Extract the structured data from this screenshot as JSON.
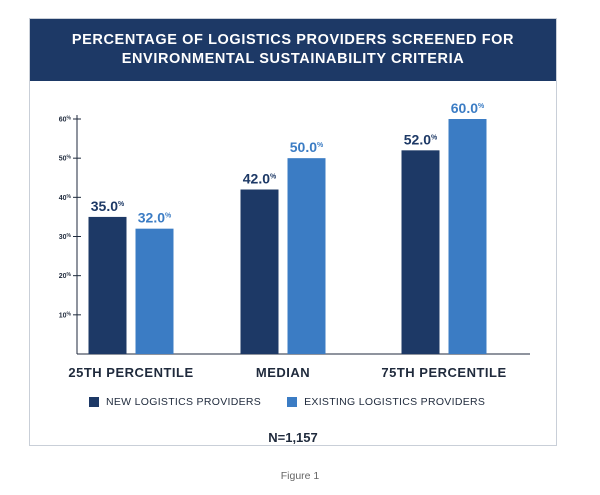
{
  "title": {
    "line1": "PERCENTAGE OF LOGISTICS PROVIDERS SCREENED FOR",
    "line2": "ENVIRONMENTAL SUSTAINABILITY CRITERIA"
  },
  "note": "N=1,157",
  "caption": "Figure 1",
  "colors": {
    "title_bg": "#1d3966",
    "new": "#1d3966",
    "existing": "#3b7cc4"
  },
  "chart_data": {
    "type": "bar",
    "title": "PERCENTAGE OF LOGISTICS PROVIDERS SCREENED FOR ENVIRONMENTAL SUSTAINABILITY CRITERIA",
    "categories": [
      "25TH PERCENTILE",
      "MEDIAN",
      "75TH PERCENTILE"
    ],
    "series": [
      {
        "name": "NEW LOGISTICS PROVIDERS",
        "values": [
          35.0,
          42.0,
          52.0
        ],
        "labels": [
          "35.0",
          "42.0",
          "52.0"
        ]
      },
      {
        "name": "EXISTING LOGISTICS PROVIDERS",
        "values": [
          32.0,
          50.0,
          60.0
        ],
        "labels": [
          "32.0",
          "50.0",
          "60.0"
        ]
      }
    ],
    "value_suffix": "%",
    "yticks": [
      10,
      20,
      30,
      40,
      50,
      60
    ],
    "ytick_labels": [
      "10",
      "20",
      "30",
      "40",
      "50",
      "60"
    ],
    "ytick_suffix": "%",
    "ylim": [
      0,
      60
    ],
    "xlabel": "",
    "ylabel": "",
    "grid": false,
    "legend_position": "bottom"
  }
}
